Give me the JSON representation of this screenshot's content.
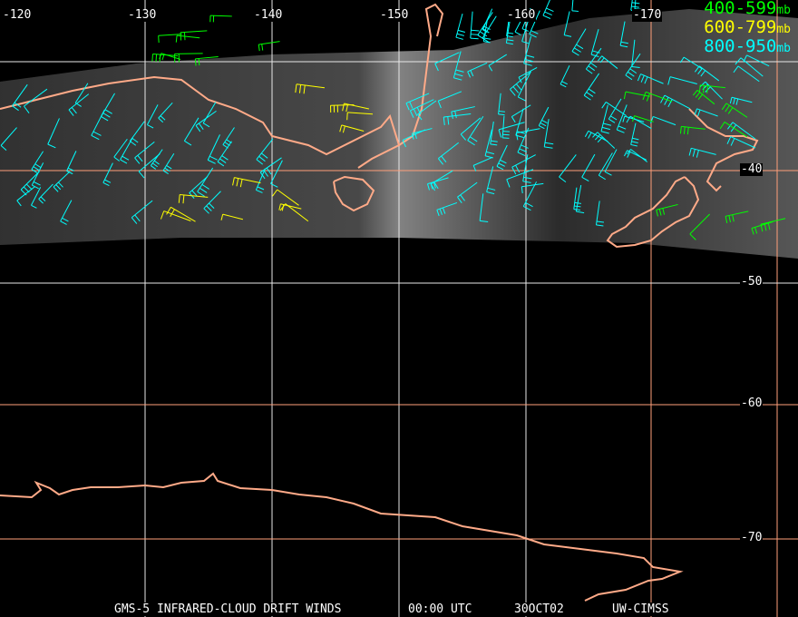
{
  "colors": {
    "background": "#000000",
    "coastline": "#ffaa88",
    "grid_white": "#e8e8e8",
    "grid_orange": "#ff9f7a",
    "level_400_599": "#00ff00",
    "level_600_799": "#ffff00",
    "level_800_950": "#00ffff"
  },
  "longitude_labels": [
    "-120",
    "-130",
    "-140",
    "-150",
    "-160",
    "-170"
  ],
  "latitude_labels": [
    "-40",
    "-50",
    "-60",
    "-70"
  ],
  "legend": [
    {
      "range": "400-599",
      "unit": "mb"
    },
    {
      "range": "600-799",
      "unit": "mb"
    },
    {
      "range": "800-950",
      "unit": "mb"
    }
  ],
  "footer": {
    "product": "GMS-5 INFRARED-CLOUD DRIFT WINDS",
    "time": "00:00 UTC",
    "date": "30OCT02",
    "source": "UW-CIMSS"
  }
}
